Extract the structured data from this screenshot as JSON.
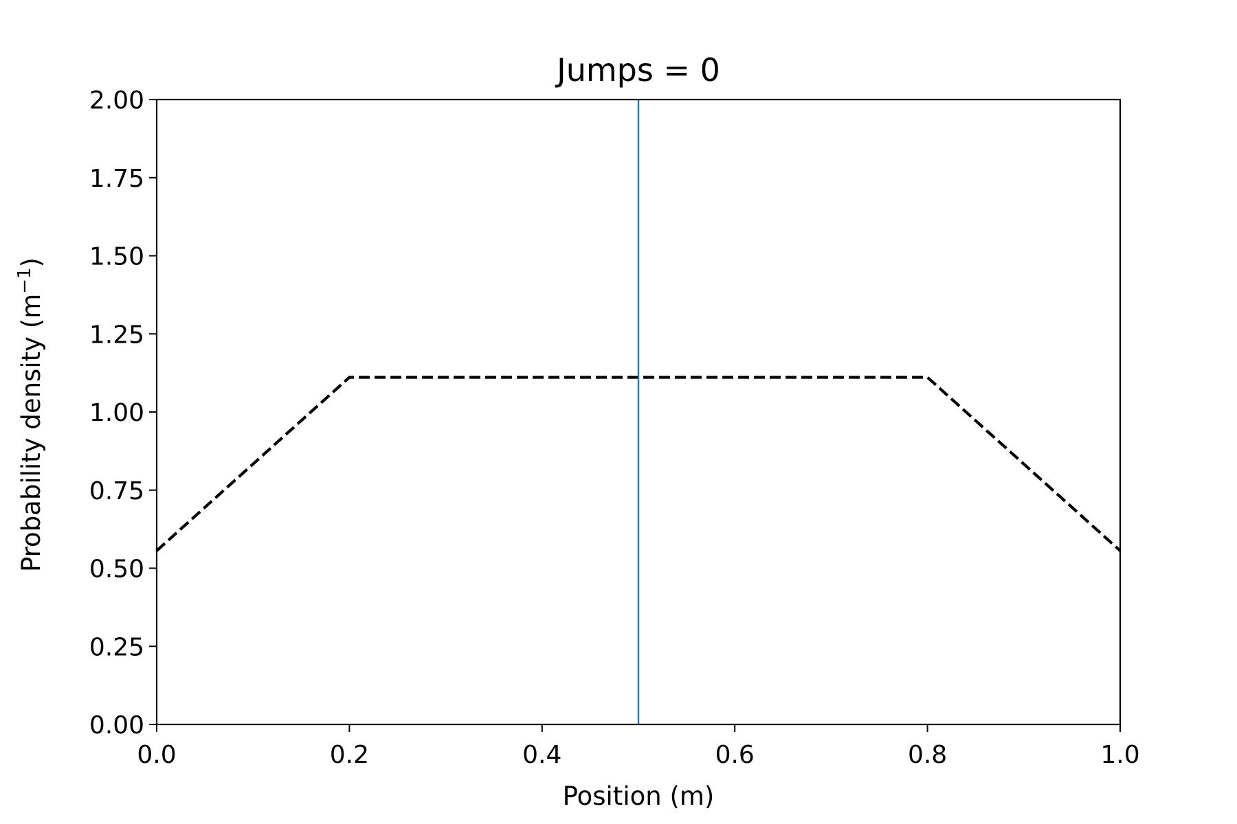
{
  "chart_data": {
    "type": "line",
    "title": "Jumps =  0",
    "xlabel": "Position (m)",
    "ylabel_main": "Probability density (m",
    "ylabel_sup": "−1",
    "ylabel_end": ")",
    "xlim": [
      0.0,
      1.0
    ],
    "ylim": [
      0.0,
      2.0
    ],
    "xticks": [
      0.0,
      0.2,
      0.4,
      0.6,
      0.8,
      1.0
    ],
    "xtick_labels": [
      "0.0",
      "0.2",
      "0.4",
      "0.6",
      "0.8",
      "1.0"
    ],
    "yticks": [
      0.0,
      0.25,
      0.5,
      0.75,
      1.0,
      1.25,
      1.5,
      1.75,
      2.0
    ],
    "ytick_labels": [
      "0.00",
      "0.25",
      "0.50",
      "0.75",
      "1.00",
      "1.25",
      "1.50",
      "1.75",
      "2.00"
    ],
    "grid": false,
    "series": [
      {
        "style": "dashed",
        "color": "#000000",
        "x": [
          0.0,
          0.2,
          0.8,
          1.0
        ],
        "y": [
          0.556,
          1.111,
          1.111,
          0.556
        ]
      }
    ],
    "vlines": [
      {
        "x": 0.5,
        "color": "#1f77b4"
      }
    ]
  }
}
